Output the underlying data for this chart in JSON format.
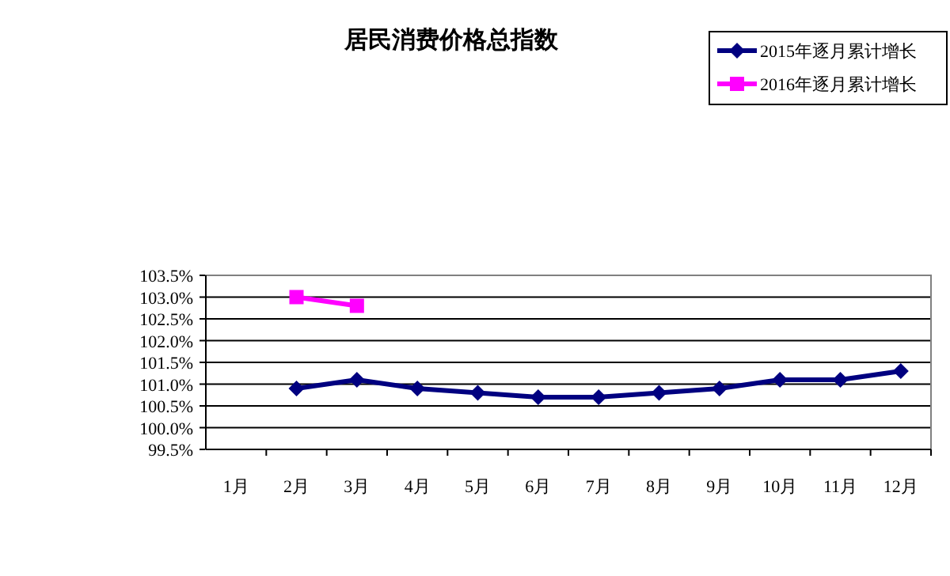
{
  "chart_data": {
    "type": "line",
    "title": "居民消费价格总指数",
    "categories": [
      "1月",
      "2月",
      "3月",
      "4月",
      "5月",
      "6月",
      "7月",
      "8月",
      "9月",
      "10月",
      "11月",
      "12月"
    ],
    "series": [
      {
        "name": "2015年逐月累计增长",
        "color": "#000080",
        "marker": "diamond",
        "values": [
          null,
          100.9,
          101.1,
          100.9,
          100.8,
          100.7,
          100.7,
          100.8,
          100.9,
          101.1,
          101.1,
          101.3
        ]
      },
      {
        "name": "2016年逐月累计增长",
        "color": "#ff00ff",
        "marker": "square",
        "values": [
          null,
          103.0,
          102.8,
          null,
          null,
          null,
          null,
          null,
          null,
          null,
          null,
          null
        ]
      }
    ],
    "ylim": [
      99.5,
      103.5
    ],
    "yticks": [
      {
        "value": 99.5,
        "label": "99.5%"
      },
      {
        "value": 100.0,
        "label": "100.0%"
      },
      {
        "value": 100.5,
        "label": "100.5%"
      },
      {
        "value": 101.0,
        "label": "101.0%"
      },
      {
        "value": 101.5,
        "label": "101.5%"
      },
      {
        "value": 102.0,
        "label": "102.0%"
      },
      {
        "value": 102.5,
        "label": "102.5%"
      },
      {
        "value": 103.0,
        "label": "103.0%"
      },
      {
        "value": 103.5,
        "label": "103.5%"
      }
    ],
    "grid": "y",
    "legend": "top right"
  }
}
